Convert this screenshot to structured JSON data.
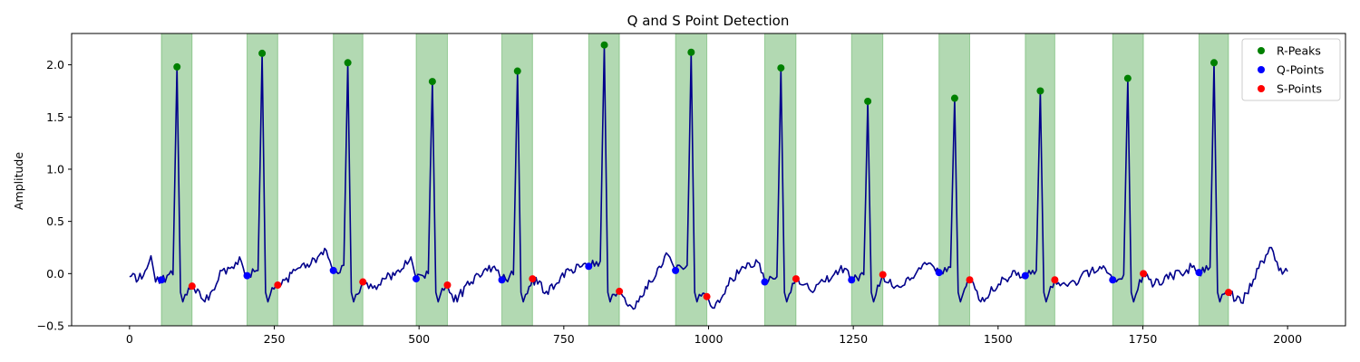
{
  "chart_data": {
    "type": "line",
    "title": "Q and S Point Detection",
    "xlabel": "",
    "ylabel": "Amplitude",
    "xlim": [
      -100,
      2100
    ],
    "ylim": [
      -0.5,
      2.3
    ],
    "xticks": [
      0,
      250,
      500,
      750,
      1000,
      1250,
      1500,
      1750,
      2000
    ],
    "yticks": [
      -0.5,
      0.0,
      0.5,
      1.0,
      1.5,
      2.0
    ],
    "ytick_labels": [
      "−0.5",
      "0.0",
      "0.5",
      "1.0",
      "1.5",
      "2.0"
    ],
    "grid": false,
    "legend_position": "top-right",
    "colors": {
      "signal": "#00008b",
      "r": "#008000",
      "q": "#0000ff",
      "s": "#ff0000",
      "span": "#008000"
    },
    "beats": [
      {
        "q": [
          55,
          -0.06
        ],
        "r": [
          82,
          1.98
        ],
        "s": [
          108,
          -0.12
        ]
      },
      {
        "q": [
          203,
          -0.02
        ],
        "r": [
          229,
          2.11
        ],
        "s": [
          256,
          -0.11
        ]
      },
      {
        "q": [
          352,
          0.03
        ],
        "r": [
          377,
          2.02
        ],
        "s": [
          403,
          -0.08
        ]
      },
      {
        "q": [
          495,
          -0.05
        ],
        "r": [
          523,
          1.84
        ],
        "s": [
          549,
          -0.11
        ]
      },
      {
        "q": [
          643,
          -0.06
        ],
        "r": [
          670,
          1.94
        ],
        "s": [
          696,
          -0.05
        ]
      },
      {
        "q": [
          793,
          0.07
        ],
        "r": [
          820,
          2.19
        ],
        "s": [
          846,
          -0.17
        ]
      },
      {
        "q": [
          943,
          0.03
        ],
        "r": [
          970,
          2.12
        ],
        "s": [
          997,
          -0.22
        ]
      },
      {
        "q": [
          1097,
          -0.08
        ],
        "r": [
          1125,
          1.97
        ],
        "s": [
          1151,
          -0.05
        ]
      },
      {
        "q": [
          1247,
          -0.06
        ],
        "r": [
          1275,
          1.65
        ],
        "s": [
          1301,
          -0.01
        ]
      },
      {
        "q": [
          1398,
          0.01
        ],
        "r": [
          1425,
          1.68
        ],
        "s": [
          1451,
          -0.06
        ]
      },
      {
        "q": [
          1547,
          -0.02
        ],
        "r": [
          1573,
          1.75
        ],
        "s": [
          1598,
          -0.06
        ]
      },
      {
        "q": [
          1698,
          -0.06
        ],
        "r": [
          1724,
          1.87
        ],
        "s": [
          1751,
          0.0
        ]
      },
      {
        "q": [
          1847,
          0.01
        ],
        "r": [
          1873,
          2.02
        ],
        "s": [
          1898,
          -0.18
        ]
      }
    ],
    "spans": [
      [
        55,
        108
      ],
      [
        203,
        256
      ],
      [
        352,
        403
      ],
      [
        495,
        549
      ],
      [
        643,
        696
      ],
      [
        793,
        846
      ],
      [
        943,
        997
      ],
      [
        1097,
        1151
      ],
      [
        1247,
        1301
      ],
      [
        1398,
        1451
      ],
      [
        1547,
        1598
      ],
      [
        1698,
        1751
      ],
      [
        1847,
        1898
      ]
    ],
    "baseline_points": [
      [
        0,
        -0.03
      ],
      [
        15,
        -0.06
      ],
      [
        30,
        0.05
      ],
      [
        37,
        0.17
      ],
      [
        45,
        -0.08
      ],
      [
        130,
        -0.27
      ],
      [
        150,
        -0.1
      ],
      [
        160,
        0.03
      ],
      [
        180,
        0.05
      ],
      [
        190,
        0.16
      ],
      [
        340,
        0.22
      ],
      [
        360,
        0.0
      ],
      [
        420,
        -0.14
      ],
      [
        440,
        -0.05
      ],
      [
        470,
        0.04
      ],
      [
        486,
        0.16
      ],
      [
        560,
        -0.27
      ],
      [
        590,
        -0.08
      ],
      [
        615,
        0.05
      ],
      [
        630,
        0.07
      ],
      [
        720,
        -0.17
      ],
      [
        760,
        0.03
      ],
      [
        790,
        0.08
      ],
      [
        870,
        -0.34
      ],
      [
        900,
        -0.08
      ],
      [
        930,
        0.18
      ],
      [
        1010,
        -0.33
      ],
      [
        1040,
        -0.05
      ],
      [
        1070,
        0.1
      ],
      [
        1085,
        0.11
      ],
      [
        1180,
        -0.18
      ],
      [
        1220,
        0.03
      ],
      [
        1235,
        0.05
      ],
      [
        1320,
        -0.14
      ],
      [
        1360,
        0.02
      ],
      [
        1380,
        0.1
      ],
      [
        1470,
        -0.27
      ],
      [
        1510,
        -0.05
      ],
      [
        1535,
        0.01
      ],
      [
        1620,
        -0.12
      ],
      [
        1660,
        0.02
      ],
      [
        1685,
        0.05
      ],
      [
        1770,
        -0.1
      ],
      [
        1800,
        -0.02
      ],
      [
        1835,
        0.06
      ],
      [
        1920,
        -0.28
      ],
      [
        1950,
        0.05
      ],
      [
        1972,
        0.25
      ],
      [
        1985,
        0.03
      ],
      [
        2000,
        0.02
      ]
    ],
    "series": [
      {
        "name": "R-Peaks",
        "marker": "r"
      },
      {
        "name": "Q-Points",
        "marker": "q"
      },
      {
        "name": "S-Points",
        "marker": "s"
      }
    ]
  }
}
